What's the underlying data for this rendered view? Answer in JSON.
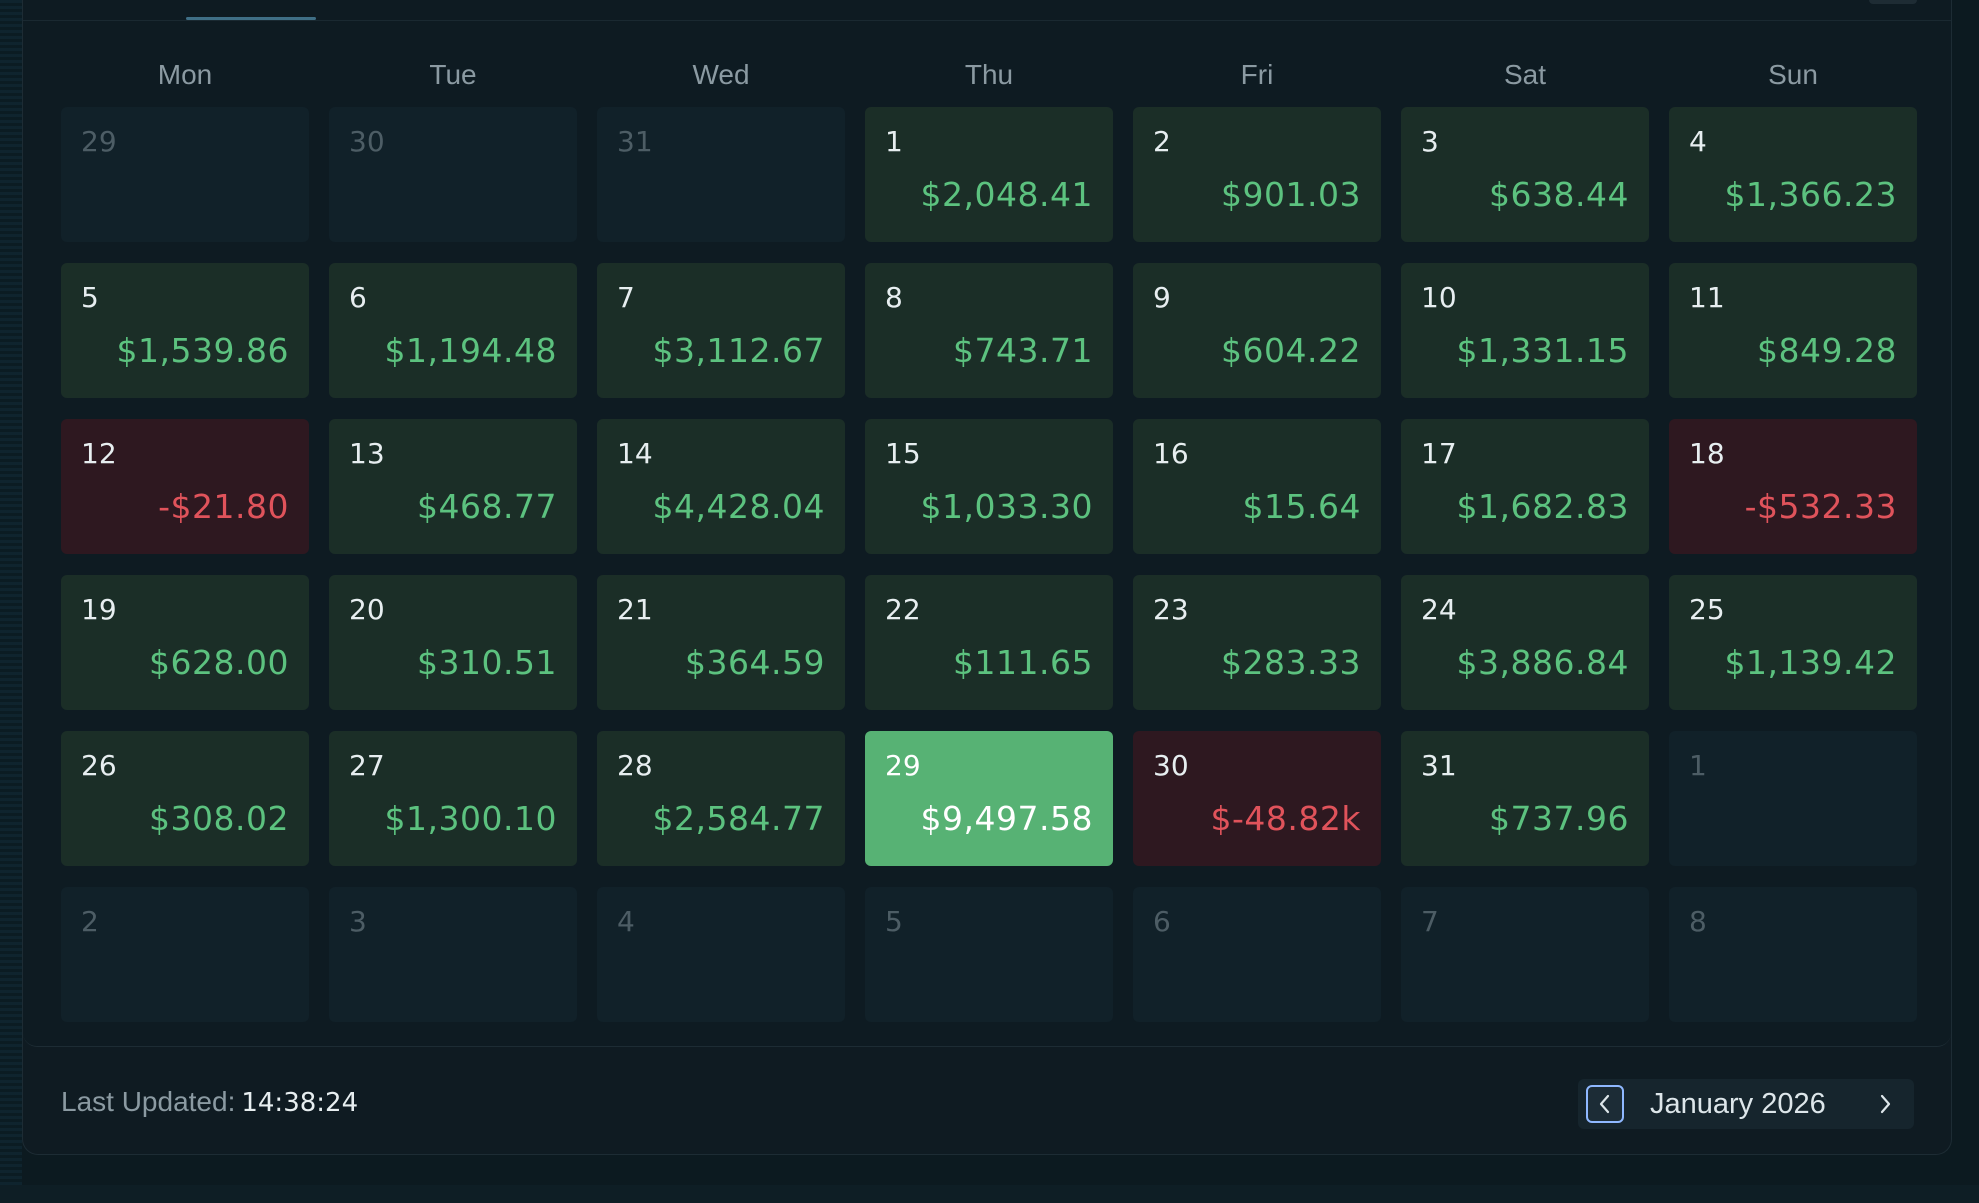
{
  "weekdays": [
    "Mon",
    "Tue",
    "Wed",
    "Thu",
    "Fri",
    "Sat",
    "Sun"
  ],
  "days": [
    {
      "day": "29",
      "value": "",
      "state": "muted"
    },
    {
      "day": "30",
      "value": "",
      "state": "muted"
    },
    {
      "day": "31",
      "value": "",
      "state": "muted"
    },
    {
      "day": "1",
      "value": "$2,048.41",
      "state": "pos"
    },
    {
      "day": "2",
      "value": "$901.03",
      "state": "pos"
    },
    {
      "day": "3",
      "value": "$638.44",
      "state": "pos"
    },
    {
      "day": "4",
      "value": "$1,366.23",
      "state": "pos"
    },
    {
      "day": "5",
      "value": "$1,539.86",
      "state": "pos"
    },
    {
      "day": "6",
      "value": "$1,194.48",
      "state": "pos"
    },
    {
      "day": "7",
      "value": "$3,112.67",
      "state": "pos"
    },
    {
      "day": "8",
      "value": "$743.71",
      "state": "pos"
    },
    {
      "day": "9",
      "value": "$604.22",
      "state": "pos"
    },
    {
      "day": "10",
      "value": "$1,331.15",
      "state": "pos"
    },
    {
      "day": "11",
      "value": "$849.28",
      "state": "pos"
    },
    {
      "day": "12",
      "value": "-$21.80",
      "state": "neg"
    },
    {
      "day": "13",
      "value": "$468.77",
      "state": "pos"
    },
    {
      "day": "14",
      "value": "$4,428.04",
      "state": "pos"
    },
    {
      "day": "15",
      "value": "$1,033.30",
      "state": "pos"
    },
    {
      "day": "16",
      "value": "$15.64",
      "state": "pos"
    },
    {
      "day": "17",
      "value": "$1,682.83",
      "state": "pos"
    },
    {
      "day": "18",
      "value": "-$532.33",
      "state": "neg"
    },
    {
      "day": "19",
      "value": "$628.00",
      "state": "pos"
    },
    {
      "day": "20",
      "value": "$310.51",
      "state": "pos"
    },
    {
      "day": "21",
      "value": "$364.59",
      "state": "pos"
    },
    {
      "day": "22",
      "value": "$111.65",
      "state": "pos"
    },
    {
      "day": "23",
      "value": "$283.33",
      "state": "pos"
    },
    {
      "day": "24",
      "value": "$3,886.84",
      "state": "pos"
    },
    {
      "day": "25",
      "value": "$1,139.42",
      "state": "pos"
    },
    {
      "day": "26",
      "value": "$308.02",
      "state": "pos"
    },
    {
      "day": "27",
      "value": "$1,300.10",
      "state": "pos"
    },
    {
      "day": "28",
      "value": "$2,584.77",
      "state": "pos"
    },
    {
      "day": "29",
      "value": "$9,497.58",
      "state": "best"
    },
    {
      "day": "30",
      "value": "$-48.82k",
      "state": "neg"
    },
    {
      "day": "31",
      "value": "$737.96",
      "state": "pos"
    },
    {
      "day": "1",
      "value": "",
      "state": "muted"
    },
    {
      "day": "2",
      "value": "",
      "state": "muted"
    },
    {
      "day": "3",
      "value": "",
      "state": "muted"
    },
    {
      "day": "4",
      "value": "",
      "state": "muted"
    },
    {
      "day": "5",
      "value": "",
      "state": "muted"
    },
    {
      "day": "6",
      "value": "",
      "state": "muted"
    },
    {
      "day": "7",
      "value": "",
      "state": "muted"
    },
    {
      "day": "8",
      "value": "",
      "state": "muted"
    }
  ],
  "footer": {
    "last_updated_label": "Last Updated:",
    "last_updated_time": "14:38:24",
    "month_label": "January 2026",
    "prev_icon": "chevron-left-icon",
    "next_icon": "chevron-right-icon"
  },
  "colors": {
    "positive": "#5cc27f",
    "negative": "#e0535b",
    "best_day_bg": "#57b274"
  }
}
